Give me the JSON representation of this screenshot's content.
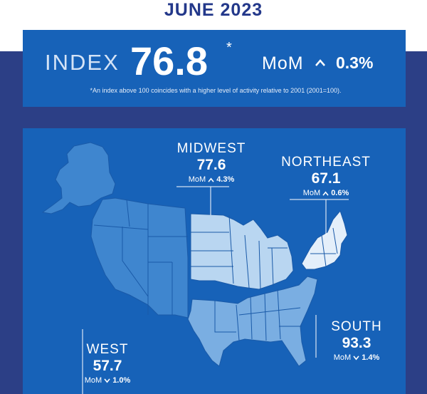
{
  "header": {
    "title": "JUNE 2023"
  },
  "index": {
    "label": "INDEX",
    "value": "76.8",
    "asterisk": "*",
    "mom_label": "MoM",
    "mom_direction": "up",
    "mom_value": "0.3%",
    "footnote": "*An index above 100 coincides with a higher level of activity relative to 2001 (2001=100)."
  },
  "regions": {
    "midwest": {
      "name": "MIDWEST",
      "value": "77.6",
      "mom_label": "MoM",
      "mom_direction": "up",
      "mom_value": "4.3%"
    },
    "northeast": {
      "name": "NORTHEAST",
      "value": "67.1",
      "mom_label": "MoM",
      "mom_direction": "up",
      "mom_value": "0.6%"
    },
    "south": {
      "name": "SOUTH",
      "value": "93.3",
      "mom_label": "MoM",
      "mom_direction": "down",
      "mom_value": "1.4%"
    },
    "west": {
      "name": "WEST",
      "value": "57.7",
      "mom_label": "MoM",
      "mom_direction": "down",
      "mom_value": "1.0%"
    }
  },
  "colors": {
    "title": "#23388a",
    "outer_background": "#2c3f86",
    "panel": "#1762b8",
    "west_fill": "#3f86cf",
    "midwest_fill": "#b9d6f1",
    "northeast_fill": "#e4effa",
    "south_fill": "#7aaee2",
    "alaska_fill": "#3f86cf",
    "state_border": "#1a5aa8"
  }
}
